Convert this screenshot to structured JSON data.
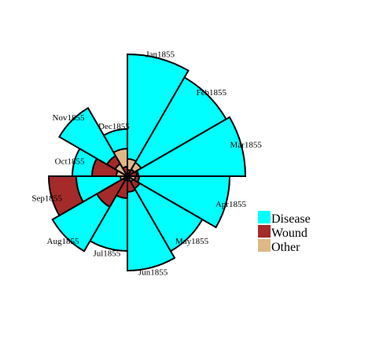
{
  "chart_data": {
    "type": "polar-area",
    "categories": [
      "Jan1855",
      "Feb1855",
      "Mar1855",
      "Apr1855",
      "May1855",
      "Jun1855",
      "Jul1855",
      "Aug1855",
      "Sep1855",
      "Oct1855",
      "Nov1855",
      "Dec1855"
    ],
    "series": [
      {
        "name": "Disease",
        "color": "#00ffff",
        "values": [
          155,
          145,
          150,
          130,
          110,
          120,
          95,
          110,
          65,
          70,
          100,
          60
        ]
      },
      {
        "name": "Wound",
        "color": "#a52a2a",
        "values": [
          8,
          10,
          12,
          15,
          18,
          20,
          28,
          45,
          100,
          45,
          30,
          12
        ]
      },
      {
        "name": "Other",
        "color": "#deb887",
        "values": [
          22,
          20,
          14,
          10,
          8,
          6,
          5,
          6,
          9,
          14,
          18,
          35
        ]
      }
    ],
    "legend_position": "right",
    "grid": false
  }
}
